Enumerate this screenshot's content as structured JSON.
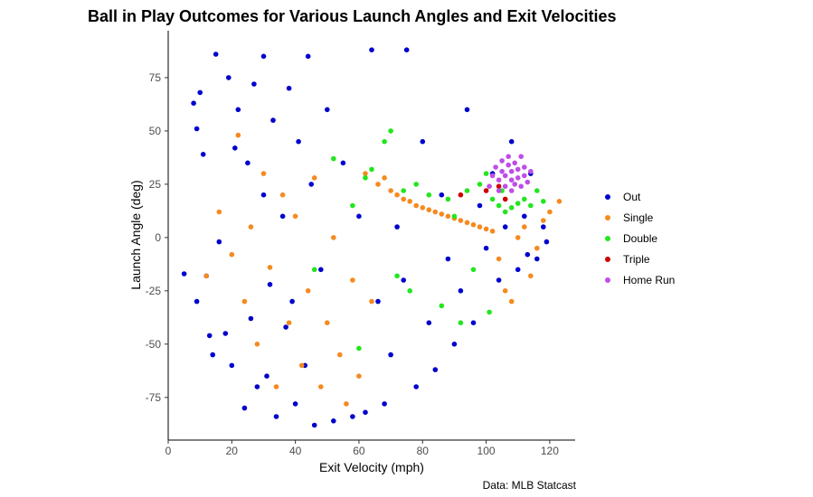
{
  "chart_data": {
    "type": "scatter",
    "title": "Ball in Play Outcomes for Various Launch Angles and Exit Velocities",
    "xlabel": "Exit Velocity (mph)",
    "ylabel": "Launch Angle (deg)",
    "caption": "Data: MLB Statcast",
    "xlim": [
      0,
      128
    ],
    "ylim": [
      -95,
      97
    ],
    "x_ticks": [
      0,
      20,
      40,
      60,
      80,
      100,
      120
    ],
    "y_ticks": [
      -75,
      -50,
      -25,
      0,
      25,
      50,
      75
    ],
    "grid": false,
    "legend_position": "right",
    "series": [
      {
        "name": "Out",
        "color": "#0000cd",
        "points": [
          [
            5,
            -17
          ],
          [
            8,
            63
          ],
          [
            9,
            -30
          ],
          [
            9,
            51
          ],
          [
            10,
            68
          ],
          [
            11,
            39
          ],
          [
            12,
            -18
          ],
          [
            13,
            -46
          ],
          [
            14,
            -55
          ],
          [
            15,
            86
          ],
          [
            16,
            -2
          ],
          [
            18,
            -45
          ],
          [
            19,
            75
          ],
          [
            20,
            -60
          ],
          [
            21,
            42
          ],
          [
            22,
            60
          ],
          [
            24,
            -80
          ],
          [
            25,
            35
          ],
          [
            26,
            -38
          ],
          [
            27,
            72
          ],
          [
            28,
            -70
          ],
          [
            30,
            20
          ],
          [
            30,
            85
          ],
          [
            31,
            -65
          ],
          [
            32,
            -22
          ],
          [
            33,
            55
          ],
          [
            34,
            -84
          ],
          [
            36,
            10
          ],
          [
            37,
            -42
          ],
          [
            38,
            70
          ],
          [
            39,
            -30
          ],
          [
            40,
            -78
          ],
          [
            41,
            45
          ],
          [
            43,
            -60
          ],
          [
            44,
            85
          ],
          [
            45,
            25
          ],
          [
            46,
            -88
          ],
          [
            48,
            -15
          ],
          [
            50,
            60
          ],
          [
            52,
            -86
          ],
          [
            55,
            35
          ],
          [
            58,
            -84
          ],
          [
            60,
            10
          ],
          [
            62,
            -82
          ],
          [
            64,
            88
          ],
          [
            66,
            -30
          ],
          [
            68,
            -78
          ],
          [
            70,
            -55
          ],
          [
            72,
            5
          ],
          [
            74,
            -20
          ],
          [
            75,
            88
          ],
          [
            78,
            -70
          ],
          [
            80,
            45
          ],
          [
            82,
            -40
          ],
          [
            84,
            -62
          ],
          [
            86,
            20
          ],
          [
            88,
            -10
          ],
          [
            90,
            -50
          ],
          [
            92,
            -25
          ],
          [
            94,
            60
          ],
          [
            96,
            -40
          ],
          [
            98,
            15
          ],
          [
            100,
            -5
          ],
          [
            102,
            30
          ],
          [
            104,
            -20
          ],
          [
            106,
            5
          ],
          [
            108,
            45
          ],
          [
            110,
            -15
          ],
          [
            112,
            10
          ],
          [
            113,
            -8
          ],
          [
            114,
            30
          ],
          [
            116,
            -10
          ],
          [
            118,
            5
          ],
          [
            119,
            -2
          ]
        ]
      },
      {
        "name": "Single",
        "color": "#f58a1f",
        "points": [
          [
            12,
            -18
          ],
          [
            16,
            12
          ],
          [
            20,
            -8
          ],
          [
            22,
            48
          ],
          [
            24,
            -30
          ],
          [
            26,
            5
          ],
          [
            28,
            -50
          ],
          [
            30,
            30
          ],
          [
            32,
            -14
          ],
          [
            34,
            -70
          ],
          [
            36,
            20
          ],
          [
            38,
            -40
          ],
          [
            40,
            10
          ],
          [
            42,
            -60
          ],
          [
            44,
            -25
          ],
          [
            46,
            28
          ],
          [
            48,
            -70
          ],
          [
            50,
            -40
          ],
          [
            52,
            0
          ],
          [
            54,
            -55
          ],
          [
            56,
            -78
          ],
          [
            58,
            -20
          ],
          [
            60,
            -65
          ],
          [
            62,
            30
          ],
          [
            64,
            -30
          ],
          [
            66,
            25
          ],
          [
            68,
            28
          ],
          [
            70,
            22
          ],
          [
            72,
            20
          ],
          [
            74,
            18
          ],
          [
            76,
            17
          ],
          [
            78,
            15
          ],
          [
            80,
            14
          ],
          [
            82,
            13
          ],
          [
            84,
            12
          ],
          [
            86,
            11
          ],
          [
            88,
            10
          ],
          [
            90,
            9
          ],
          [
            92,
            8
          ],
          [
            94,
            7
          ],
          [
            96,
            6
          ],
          [
            98,
            5
          ],
          [
            100,
            4
          ],
          [
            102,
            3
          ],
          [
            104,
            -10
          ],
          [
            106,
            -25
          ],
          [
            108,
            -30
          ],
          [
            110,
            0
          ],
          [
            112,
            5
          ],
          [
            114,
            -18
          ],
          [
            116,
            -5
          ],
          [
            118,
            8
          ],
          [
            120,
            12
          ],
          [
            123,
            17
          ]
        ]
      },
      {
        "name": "Double",
        "color": "#22e61e",
        "points": [
          [
            46,
            -15
          ],
          [
            52,
            37
          ],
          [
            58,
            15
          ],
          [
            60,
            -52
          ],
          [
            62,
            28
          ],
          [
            64,
            32
          ],
          [
            68,
            45
          ],
          [
            70,
            50
          ],
          [
            72,
            -18
          ],
          [
            74,
            22
          ],
          [
            76,
            -25
          ],
          [
            78,
            25
          ],
          [
            82,
            20
          ],
          [
            86,
            -32
          ],
          [
            88,
            18
          ],
          [
            90,
            10
          ],
          [
            92,
            -40
          ],
          [
            94,
            22
          ],
          [
            96,
            -15
          ],
          [
            98,
            25
          ],
          [
            100,
            30
          ],
          [
            101,
            -35
          ],
          [
            102,
            18
          ],
          [
            104,
            15
          ],
          [
            105,
            22
          ],
          [
            106,
            12
          ],
          [
            108,
            14
          ],
          [
            110,
            16
          ],
          [
            112,
            18
          ],
          [
            114,
            15
          ],
          [
            116,
            22
          ],
          [
            118,
            17
          ]
        ]
      },
      {
        "name": "Triple",
        "color": "#cc0000",
        "points": [
          [
            92,
            20
          ],
          [
            100,
            22
          ],
          [
            104,
            24
          ],
          [
            106,
            18
          ]
        ]
      },
      {
        "name": "Home Run",
        "color": "#bf4de8",
        "points": [
          [
            101,
            24
          ],
          [
            102,
            29
          ],
          [
            103,
            33
          ],
          [
            104,
            22
          ],
          [
            104,
            27
          ],
          [
            105,
            31
          ],
          [
            105,
            36
          ],
          [
            106,
            24
          ],
          [
            106,
            29
          ],
          [
            107,
            34
          ],
          [
            107,
            38
          ],
          [
            108,
            22
          ],
          [
            108,
            27
          ],
          [
            108,
            31
          ],
          [
            109,
            25
          ],
          [
            109,
            35
          ],
          [
            110,
            28
          ],
          [
            110,
            32
          ],
          [
            111,
            24
          ],
          [
            111,
            38
          ],
          [
            112,
            29
          ],
          [
            112,
            33
          ],
          [
            113,
            26
          ],
          [
            114,
            31
          ]
        ]
      }
    ]
  }
}
